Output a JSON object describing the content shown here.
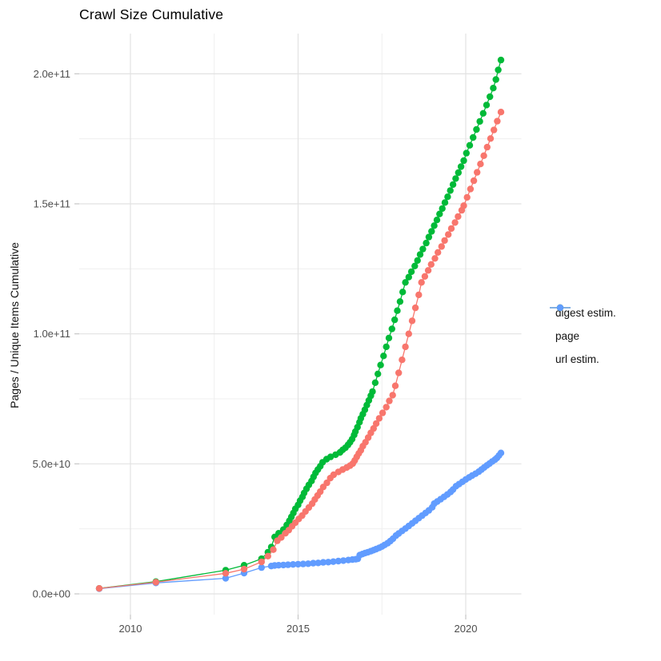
{
  "title": "Crawl Size Cumulative",
  "axes": {
    "x": {
      "ticks": [
        {
          "label": "2010",
          "year": 2010
        },
        {
          "label": "2015",
          "year": 2015
        },
        {
          "label": "2020",
          "year": 2020
        }
      ],
      "minor_years": [
        2012.5,
        2017.5
      ]
    },
    "y": {
      "label": "Pages / Unique Items Cumulative",
      "ticks": [
        {
          "label": "0.0e+00",
          "value_e9": 0
        },
        {
          "label": "5.0e+10",
          "value_e9": 50
        },
        {
          "label": "1.0e+11",
          "value_e9": 100
        },
        {
          "label": "1.5e+11",
          "value_e9": 150
        },
        {
          "label": "2.0e+11",
          "value_e9": 200
        }
      ],
      "minor_values_e9": [
        25,
        75,
        125,
        175
      ]
    }
  },
  "legend": {
    "items": [
      {
        "label": "digest estim.",
        "color": "#F8766D"
      },
      {
        "label": "page",
        "color": "#00BA38"
      },
      {
        "label": "url estim.",
        "color": "#619CFF"
      }
    ]
  },
  "chart_data": {
    "type": "line",
    "title": "Crawl Size Cumulative",
    "xlabel": "",
    "ylabel": "Pages / Unique Items Cumulative",
    "x_units": "year (decimal)",
    "y_units": "count; values stored in billions (1e9)",
    "xlim": [
      2008.5,
      2021.6
    ],
    "ylim_e9": [
      -10,
      215
    ],
    "x_tick_labels": [
      "2010",
      "2015",
      "2020"
    ],
    "y_tick_labels": [
      "0.0e+00",
      "5.0e+10",
      "1.0e+11",
      "1.5e+11",
      "2.0e+11"
    ],
    "grid": true,
    "legend_position": "right",
    "marker": "point",
    "style": {
      "grid_major": "#E2E2E2",
      "grid_minor": "#EFEFEF",
      "tick_mark": "#C6C6C6",
      "tick_label_color": "#4D4D4D",
      "background": "#FFFFFF"
    },
    "series": [
      {
        "name": "digest estim.",
        "color": "#F8766D",
        "points": [
          [
            2009.07,
            2.1
          ],
          [
            2010.76,
            4.5
          ],
          [
            2012.84,
            7.9
          ],
          [
            2013.39,
            9.5
          ],
          [
            2013.91,
            12.3
          ],
          [
            2014.1,
            14.5
          ],
          [
            2014.26,
            17.0
          ],
          [
            2014.38,
            20.4
          ],
          [
            2014.5,
            21.7
          ],
          [
            2014.62,
            23.3
          ],
          [
            2014.72,
            24.5
          ],
          [
            2014.82,
            26.0
          ],
          [
            2014.92,
            27.4
          ],
          [
            2015.02,
            28.8
          ],
          [
            2015.12,
            30.1
          ],
          [
            2015.22,
            31.7
          ],
          [
            2015.32,
            33.2
          ],
          [
            2015.42,
            34.7
          ],
          [
            2015.5,
            36.3
          ],
          [
            2015.58,
            37.8
          ],
          [
            2015.66,
            39.3
          ],
          [
            2015.75,
            41.1
          ],
          [
            2015.86,
            42.7
          ],
          [
            2015.96,
            44.5
          ],
          [
            2016.06,
            45.8
          ],
          [
            2016.2,
            46.9
          ],
          [
            2016.33,
            47.8
          ],
          [
            2016.45,
            48.6
          ],
          [
            2016.55,
            49.3
          ],
          [
            2016.63,
            50.1
          ],
          [
            2016.69,
            51.3
          ],
          [
            2016.75,
            52.7
          ],
          [
            2016.81,
            54.0
          ],
          [
            2016.87,
            55.2
          ],
          [
            2016.93,
            56.8
          ],
          [
            2017.01,
            58.3
          ],
          [
            2017.09,
            60.1
          ],
          [
            2017.17,
            61.9
          ],
          [
            2017.25,
            63.6
          ],
          [
            2017.33,
            65.5
          ],
          [
            2017.42,
            67.5
          ],
          [
            2017.52,
            69.6
          ],
          [
            2017.63,
            71.8
          ],
          [
            2017.72,
            74.2
          ],
          [
            2017.82,
            76.4
          ],
          [
            2017.9,
            80.0
          ],
          [
            2018.0,
            85.0
          ],
          [
            2018.1,
            90.0
          ],
          [
            2018.2,
            95.0
          ],
          [
            2018.3,
            100.0
          ],
          [
            2018.4,
            105.0
          ],
          [
            2018.5,
            110.0
          ],
          [
            2018.6,
            115.0
          ],
          [
            2018.68,
            119.8
          ],
          [
            2018.78,
            122.1
          ],
          [
            2018.88,
            124.4
          ],
          [
            2018.97,
            126.7
          ],
          [
            2019.08,
            129.0
          ],
          [
            2019.17,
            131.3
          ],
          [
            2019.28,
            133.6
          ],
          [
            2019.37,
            135.9
          ],
          [
            2019.48,
            138.2
          ],
          [
            2019.57,
            140.5
          ],
          [
            2019.68,
            142.8
          ],
          [
            2019.77,
            145.1
          ],
          [
            2019.88,
            147.5
          ],
          [
            2019.94,
            149.3
          ],
          [
            2020.04,
            152.5
          ],
          [
            2020.14,
            155.7
          ],
          [
            2020.24,
            158.9
          ],
          [
            2020.34,
            162.1
          ],
          [
            2020.44,
            165.3
          ],
          [
            2020.54,
            168.5
          ],
          [
            2020.64,
            171.8
          ],
          [
            2020.74,
            175.1
          ],
          [
            2020.84,
            178.4
          ],
          [
            2020.94,
            181.8
          ],
          [
            2021.05,
            185.3
          ]
        ]
      },
      {
        "name": "page",
        "color": "#00BA38",
        "points": [
          [
            2009.07,
            2.1
          ],
          [
            2010.76,
            4.7
          ],
          [
            2012.84,
            9.1
          ],
          [
            2013.39,
            11.0
          ],
          [
            2013.91,
            13.5
          ],
          [
            2014.1,
            16.0
          ],
          [
            2014.2,
            18.0
          ],
          [
            2014.3,
            21.9
          ],
          [
            2014.42,
            23.3
          ],
          [
            2014.56,
            24.7
          ],
          [
            2014.66,
            26.5
          ],
          [
            2014.74,
            28.1
          ],
          [
            2014.8,
            29.6
          ],
          [
            2014.86,
            31.1
          ],
          [
            2014.92,
            32.7
          ],
          [
            2015.0,
            34.2
          ],
          [
            2015.06,
            35.8
          ],
          [
            2015.13,
            37.3
          ],
          [
            2015.18,
            38.8
          ],
          [
            2015.25,
            40.4
          ],
          [
            2015.32,
            41.9
          ],
          [
            2015.4,
            43.4
          ],
          [
            2015.46,
            45.0
          ],
          [
            2015.52,
            46.5
          ],
          [
            2015.59,
            47.8
          ],
          [
            2015.66,
            49.1
          ],
          [
            2015.73,
            50.6
          ],
          [
            2015.85,
            51.8
          ],
          [
            2015.97,
            52.7
          ],
          [
            2016.12,
            53.5
          ],
          [
            2016.25,
            54.4
          ],
          [
            2016.33,
            55.4
          ],
          [
            2016.41,
            56.2
          ],
          [
            2016.49,
            57.3
          ],
          [
            2016.55,
            58.3
          ],
          [
            2016.61,
            59.5
          ],
          [
            2016.67,
            61.1
          ],
          [
            2016.71,
            62.4
          ],
          [
            2016.77,
            64.1
          ],
          [
            2016.83,
            66.0
          ],
          [
            2016.87,
            67.5
          ],
          [
            2016.93,
            69.1
          ],
          [
            2016.99,
            70.8
          ],
          [
            2017.05,
            72.6
          ],
          [
            2017.11,
            74.4
          ],
          [
            2017.17,
            76.2
          ],
          [
            2017.22,
            77.8
          ],
          [
            2017.3,
            81.2
          ],
          [
            2017.38,
            84.6
          ],
          [
            2017.46,
            88.0
          ],
          [
            2017.55,
            91.5
          ],
          [
            2017.63,
            95.0
          ],
          [
            2017.71,
            98.4
          ],
          [
            2017.8,
            101.9
          ],
          [
            2017.88,
            105.4
          ],
          [
            2017.96,
            108.9
          ],
          [
            2018.04,
            112.4
          ],
          [
            2018.12,
            116.1
          ],
          [
            2018.2,
            119.8
          ],
          [
            2018.3,
            121.8
          ],
          [
            2018.38,
            123.9
          ],
          [
            2018.48,
            126.1
          ],
          [
            2018.56,
            128.2
          ],
          [
            2018.64,
            130.5
          ],
          [
            2018.72,
            132.6
          ],
          [
            2018.82,
            134.9
          ],
          [
            2018.9,
            137.2
          ],
          [
            2018.98,
            139.4
          ],
          [
            2019.06,
            141.6
          ],
          [
            2019.14,
            143.8
          ],
          [
            2019.22,
            146.1
          ],
          [
            2019.3,
            148.2
          ],
          [
            2019.38,
            150.5
          ],
          [
            2019.46,
            152.7
          ],
          [
            2019.54,
            155.1
          ],
          [
            2019.62,
            157.4
          ],
          [
            2019.7,
            159.7
          ],
          [
            2019.78,
            162.0
          ],
          [
            2019.86,
            164.3
          ],
          [
            2019.94,
            166.6
          ],
          [
            2020.02,
            169.5
          ],
          [
            2020.12,
            172.5
          ],
          [
            2020.22,
            175.5
          ],
          [
            2020.32,
            178.6
          ],
          [
            2020.42,
            181.7
          ],
          [
            2020.52,
            184.8
          ],
          [
            2020.62,
            188.0
          ],
          [
            2020.72,
            191.2
          ],
          [
            2020.82,
            194.5
          ],
          [
            2020.9,
            197.8
          ],
          [
            2020.97,
            201.5
          ],
          [
            2021.05,
            205.3
          ]
        ]
      },
      {
        "name": "url estim.",
        "color": "#619CFF",
        "points": [
          [
            2009.07,
            2.0
          ],
          [
            2010.76,
            4.2
          ],
          [
            2012.84,
            6.0
          ],
          [
            2013.39,
            8.0
          ],
          [
            2013.91,
            10.1
          ],
          [
            2014.2,
            10.7
          ],
          [
            2014.3,
            10.9
          ],
          [
            2014.42,
            11.0
          ],
          [
            2014.56,
            11.1
          ],
          [
            2014.7,
            11.2
          ],
          [
            2014.85,
            11.3
          ],
          [
            2015.0,
            11.4
          ],
          [
            2015.15,
            11.5
          ],
          [
            2015.3,
            11.6
          ],
          [
            2015.45,
            11.8
          ],
          [
            2015.6,
            11.9
          ],
          [
            2015.75,
            12.1
          ],
          [
            2015.9,
            12.2
          ],
          [
            2016.05,
            12.4
          ],
          [
            2016.2,
            12.6
          ],
          [
            2016.35,
            12.8
          ],
          [
            2016.5,
            13.0
          ],
          [
            2016.62,
            13.2
          ],
          [
            2016.72,
            13.3
          ],
          [
            2016.78,
            13.5
          ],
          [
            2016.84,
            14.9
          ],
          [
            2016.92,
            15.3
          ],
          [
            2017.0,
            15.7
          ],
          [
            2017.08,
            16.0
          ],
          [
            2017.17,
            16.4
          ],
          [
            2017.25,
            16.8
          ],
          [
            2017.33,
            17.2
          ],
          [
            2017.42,
            17.7
          ],
          [
            2017.5,
            18.2
          ],
          [
            2017.58,
            18.8
          ],
          [
            2017.67,
            19.5
          ],
          [
            2017.75,
            20.3
          ],
          [
            2017.83,
            21.2
          ],
          [
            2017.92,
            22.4
          ],
          [
            2018.0,
            23.2
          ],
          [
            2018.1,
            24.2
          ],
          [
            2018.2,
            25.1
          ],
          [
            2018.3,
            26.1
          ],
          [
            2018.4,
            27.1
          ],
          [
            2018.5,
            28.1
          ],
          [
            2018.6,
            29.1
          ],
          [
            2018.7,
            30.1
          ],
          [
            2018.8,
            31.1
          ],
          [
            2018.9,
            32.1
          ],
          [
            2019.0,
            33.3
          ],
          [
            2019.06,
            34.7
          ],
          [
            2019.15,
            35.5
          ],
          [
            2019.25,
            36.4
          ],
          [
            2019.35,
            37.3
          ],
          [
            2019.45,
            38.2
          ],
          [
            2019.55,
            39.2
          ],
          [
            2019.62,
            40.1
          ],
          [
            2019.71,
            41.4
          ],
          [
            2019.8,
            42.2
          ],
          [
            2019.9,
            43.1
          ],
          [
            2020.0,
            44.0
          ],
          [
            2020.1,
            44.8
          ],
          [
            2020.19,
            45.5
          ],
          [
            2020.29,
            46.2
          ],
          [
            2020.39,
            47.0
          ],
          [
            2020.47,
            47.8
          ],
          [
            2020.55,
            48.6
          ],
          [
            2020.63,
            49.4
          ],
          [
            2020.71,
            50.1
          ],
          [
            2020.79,
            50.9
          ],
          [
            2020.87,
            51.6
          ],
          [
            2020.93,
            52.3
          ],
          [
            2020.99,
            53.2
          ],
          [
            2021.05,
            54.2
          ]
        ]
      }
    ]
  }
}
